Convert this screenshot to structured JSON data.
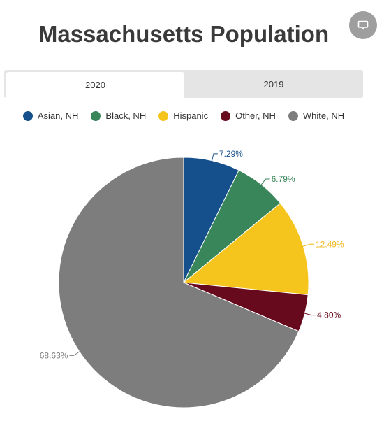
{
  "title": "Massachusetts Population",
  "toolbar": {
    "screen_icon": "monitor-icon"
  },
  "tabs": [
    {
      "label": "2020",
      "active": true
    },
    {
      "label": "2019",
      "active": false
    }
  ],
  "chart_data": {
    "type": "pie",
    "title": "Massachusetts Population",
    "legend_placement": "top",
    "categories": [
      "Asian, NH",
      "Black, NH",
      "Hispanic",
      "Other, NH",
      "White, NH"
    ],
    "values": [
      7.29,
      6.79,
      12.49,
      4.8,
      68.63
    ],
    "labels": [
      "7.29%",
      "6.79%",
      "12.49%",
      "4.80%",
      "68.63%"
    ],
    "colors": [
      "#15508c",
      "#39865a",
      "#f5c51e",
      "#670a1d",
      "#7d7d7d"
    ]
  }
}
